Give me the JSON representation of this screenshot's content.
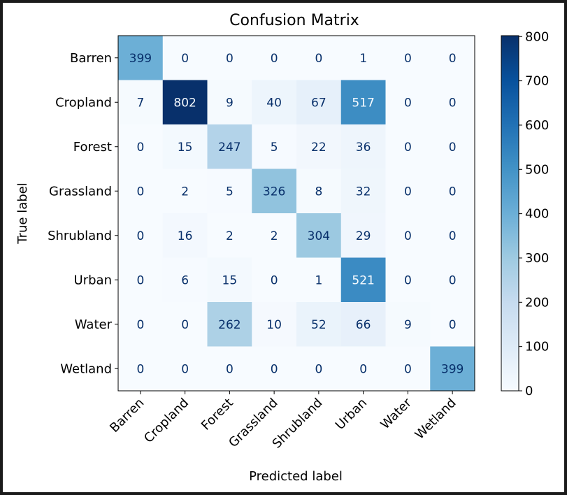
{
  "chart_data": {
    "type": "heatmap",
    "title": "Confusion Matrix",
    "xlabel": "Predicted label",
    "ylabel": "True label",
    "x_categories": [
      "Barren",
      "Cropland",
      "Forest",
      "Grassland",
      "Shrubland",
      "Urban",
      "Water",
      "Wetland"
    ],
    "y_categories": [
      "Barren",
      "Cropland",
      "Forest",
      "Grassland",
      "Shrubland",
      "Urban",
      "Water",
      "Wetland"
    ],
    "values": [
      [
        399,
        0,
        0,
        0,
        0,
        1,
        0,
        0
      ],
      [
        7,
        802,
        9,
        40,
        67,
        517,
        0,
        0
      ],
      [
        0,
        15,
        247,
        5,
        22,
        36,
        0,
        0
      ],
      [
        0,
        2,
        5,
        326,
        8,
        32,
        0,
        0
      ],
      [
        0,
        16,
        2,
        2,
        304,
        29,
        0,
        0
      ],
      [
        0,
        6,
        15,
        0,
        1,
        521,
        0,
        0
      ],
      [
        0,
        0,
        262,
        10,
        52,
        66,
        9,
        0
      ],
      [
        0,
        0,
        0,
        0,
        0,
        0,
        0,
        399
      ]
    ],
    "colorbar": {
      "colormap": "Blues",
      "min": 0,
      "max": 802,
      "ticks": [
        0,
        100,
        200,
        300,
        400,
        500,
        600,
        700,
        800
      ]
    },
    "colors": {
      "low": "#f7fbff",
      "high": "#08306b",
      "text_dark": "#08306b",
      "text_light": "#f7fbff"
    }
  }
}
